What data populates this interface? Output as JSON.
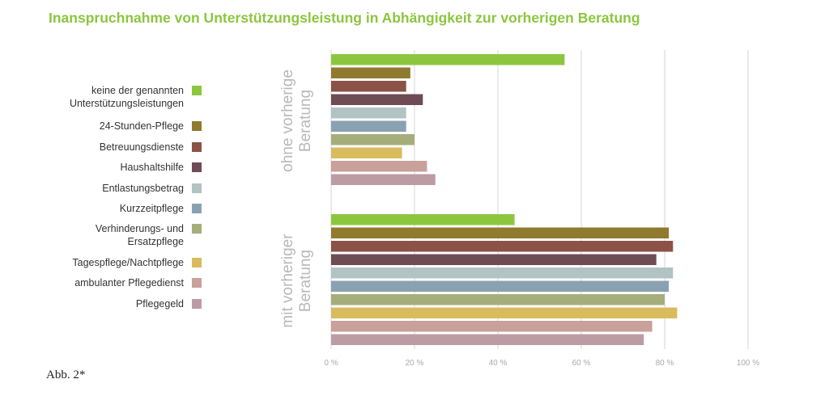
{
  "title": "Inanspruchnahme von Unterstützungsleistung in Abhängigkeit zur vorherigen Beratung",
  "footnote": "Abb. 2*",
  "legend": [
    {
      "label": "keine der genannten Unterstützungsleistungen",
      "lines": [
        "keine der genannten",
        "Unterstützungsleistungen"
      ],
      "color": "#8cc63f"
    },
    {
      "label": "24-Stunden-Pflege",
      "lines": [
        "24-Stunden-Pflege"
      ],
      "color": "#8f7a2e"
    },
    {
      "label": "Betreuungsdienste",
      "lines": [
        "Betreuungsdienste"
      ],
      "color": "#8a5346"
    },
    {
      "label": "Haushaltshilfe",
      "lines": [
        "Haushaltshilfe"
      ],
      "color": "#6e4b55"
    },
    {
      "label": "Entlastungsbetrag",
      "lines": [
        "Entlastungsbetrag"
      ],
      "color": "#b1c3c3"
    },
    {
      "label": "Kurzzeitpflege",
      "lines": [
        "Kurzzeitpflege"
      ],
      "color": "#8aa1b1"
    },
    {
      "label": "Verhinderungs- und Ersatzpflege",
      "lines": [
        "Verhinderungs- und",
        "Ersatzpflege"
      ],
      "color": "#a5ad7a"
    },
    {
      "label": "Tagespflege/Nachtpflege",
      "lines": [
        "Tagespflege/Nachtpflege"
      ],
      "color": "#d9bb5e"
    },
    {
      "label": "ambulanter Pflegedienst",
      "lines": [
        "ambulanter Pflegedienst"
      ],
      "color": "#c9a09a"
    },
    {
      "label": "Pflegegeld",
      "lines": [
        "Pflegegeld"
      ],
      "color": "#bd9ba5"
    }
  ],
  "chart_data": {
    "type": "bar",
    "orientation": "horizontal",
    "xlim": [
      0,
      100
    ],
    "xticks": [
      "0 %",
      "20 %",
      "40 %",
      "60 %",
      "80 %",
      "100 %"
    ],
    "grid": true,
    "legend_position": "left",
    "categories": [
      "keine der genannten Unterstützungsleistungen",
      "24-Stunden-Pflege",
      "Betreuungsdienste",
      "Haushaltshilfe",
      "Entlastungsbetrag",
      "Kurzzeitpflege",
      "Verhinderungs- und Ersatzpflege",
      "Tagespflege/Nachtpflege",
      "ambulanter Pflegedienst",
      "Pflegegeld"
    ],
    "groups": [
      {
        "name": "ohne vorherige Beratung",
        "lines": [
          "ohne vorherige",
          "Beratung"
        ],
        "values": [
          56,
          19,
          18,
          22,
          18,
          18,
          20,
          17,
          23,
          25
        ]
      },
      {
        "name": "mit vorheriger Beratung",
        "lines": [
          "mit vorheriger",
          "Beratung"
        ],
        "values": [
          44,
          81,
          82,
          78,
          82,
          81,
          80,
          83,
          77,
          75
        ]
      }
    ]
  }
}
